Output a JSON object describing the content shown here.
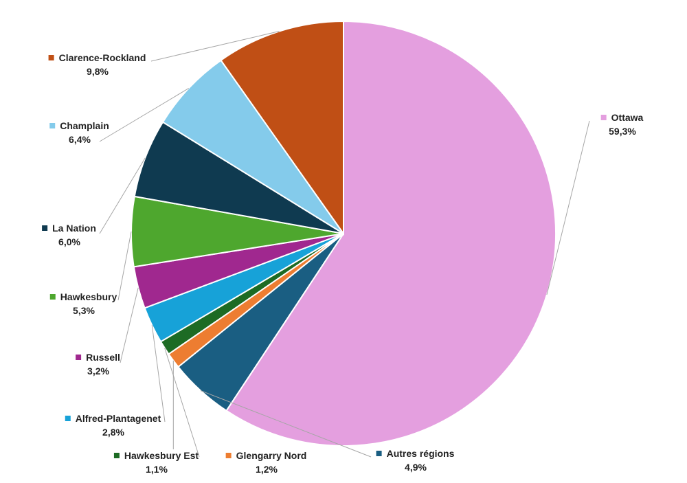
{
  "chart_data": {
    "type": "pie",
    "title": "",
    "slices": [
      {
        "label": "Ottawa",
        "value": 59.3,
        "value_label": "59,3%",
        "color": "#e49fdf"
      },
      {
        "label": "Autres régions",
        "value": 4.9,
        "value_label": "4,9%",
        "color": "#1a5e82"
      },
      {
        "label": "Glengarry Nord",
        "value": 1.2,
        "value_label": "1,2%",
        "color": "#ed7d31"
      },
      {
        "label": "Hawkesbury Est",
        "value": 1.1,
        "value_label": "1,1%",
        "color": "#1d6b24"
      },
      {
        "label": "Alfred-Plantagenet",
        "value": 2.8,
        "value_label": "2,8%",
        "color": "#17a2d8"
      },
      {
        "label": "Russell",
        "value": 3.2,
        "value_label": "3,2%",
        "color": "#a0288f"
      },
      {
        "label": "Hawkesbury",
        "value": 5.3,
        "value_label": "5,3%",
        "color": "#4ea72e"
      },
      {
        "label": "La Nation",
        "value": 6.0,
        "value_label": "6,0%",
        "color": "#0f3a50"
      },
      {
        "label": "Champlain",
        "value": 6.4,
        "value_label": "6,4%",
        "color": "#84cbeb"
      },
      {
        "label": "Clarence-Rockland",
        "value": 9.8,
        "value_label": "9,8%",
        "color": "#c04f15"
      }
    ],
    "legend": "none",
    "data_labels": "outside-with-leader-lines"
  }
}
